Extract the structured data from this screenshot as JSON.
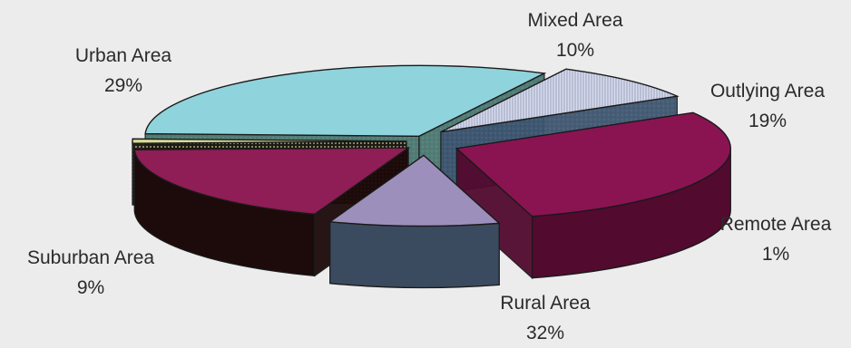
{
  "chart_data": {
    "type": "pie",
    "title": "",
    "style": "3d-exploded",
    "slices": [
      {
        "label": "Mixed Area",
        "value": 10,
        "display": "10%",
        "color": "#9d8fbb"
      },
      {
        "label": "Outlying Area",
        "value": 19,
        "display": "19%",
        "color": "#8f1d56"
      },
      {
        "label": "Remote Area",
        "value": 1,
        "display": "1%",
        "color": "#d9dc95"
      },
      {
        "label": "Rural Area",
        "value": 32,
        "display": "32%",
        "color": "#8fd3dc"
      },
      {
        "label": "Suburban Area",
        "value": 9,
        "display": "9%",
        "color": "#c9d0e6"
      },
      {
        "label": "Urban Area",
        "value": 29,
        "display": "29%",
        "color": "#8a1452"
      }
    ]
  }
}
